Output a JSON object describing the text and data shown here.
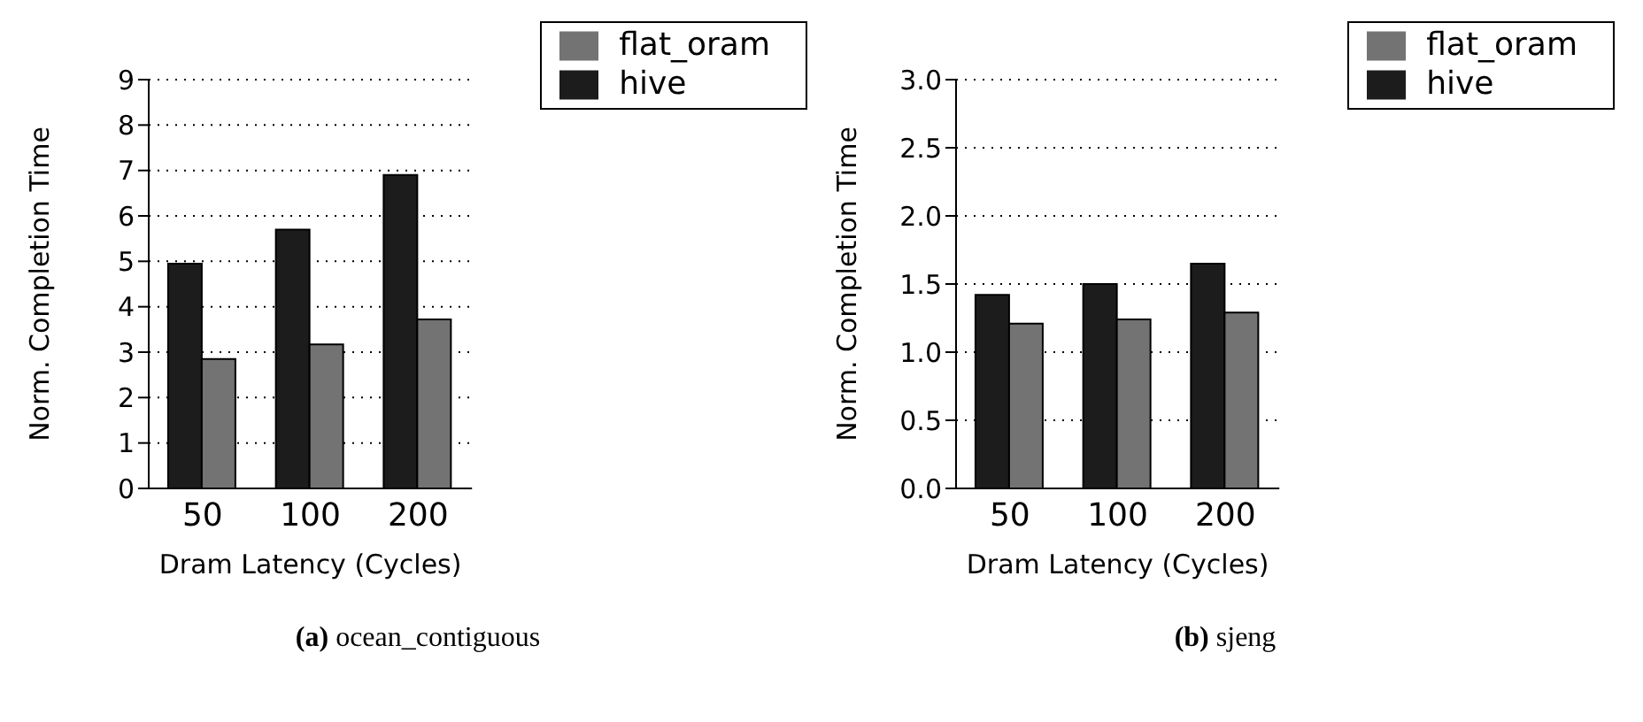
{
  "chart_data": [
    {
      "type": "bar",
      "title": "(a) ocean_contiguous",
      "xlabel": "Dram Latency (Cycles)",
      "ylabel": "Norm. Completion Time",
      "categories": [
        "50",
        "100",
        "200"
      ],
      "series": [
        {
          "name": "hive",
          "color": "#1c1c1c",
          "values": [
            4.95,
            5.7,
            6.9
          ]
        },
        {
          "name": "flat_oram",
          "color": "#737373",
          "values": [
            2.85,
            3.17,
            3.72
          ]
        }
      ],
      "ylim": [
        0,
        9
      ],
      "yticks": [
        0,
        1,
        2,
        3,
        4,
        5,
        6,
        7,
        8,
        9
      ],
      "grid": "y",
      "legend": "top right"
    },
    {
      "type": "bar",
      "title": "(b) sjeng",
      "xlabel": "Dram Latency (Cycles)",
      "ylabel": "Norm. Completion Time",
      "categories": [
        "50",
        "100",
        "200"
      ],
      "series": [
        {
          "name": "hive",
          "color": "#1c1c1c",
          "values": [
            1.42,
            1.5,
            1.65
          ]
        },
        {
          "name": "flat_oram",
          "color": "#737373",
          "values": [
            1.21,
            1.24,
            1.29
          ]
        }
      ],
      "ylim": [
        0,
        3
      ],
      "yticks": [
        {
          "value": 0,
          "label": "0.0"
        },
        {
          "value": 0.5,
          "label": "0.5"
        },
        {
          "value": 1,
          "label": "1.0"
        },
        {
          "value": 1.5,
          "label": "1.5"
        },
        {
          "value": 2,
          "label": "2.0"
        },
        {
          "value": 2.5,
          "label": "2.5"
        },
        {
          "value": 3,
          "label": "3.0"
        }
      ],
      "grid": "y",
      "legend": "top right"
    }
  ]
}
